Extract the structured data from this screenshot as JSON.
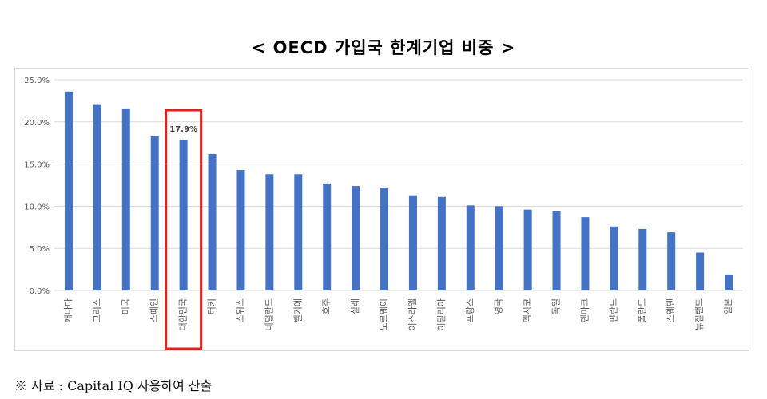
{
  "title": "< OECD 가입국 한계기업 비중 >",
  "source_note": "※ 자료 : Capital IQ 사용하여 산출",
  "colors": {
    "bar": "#4472c4",
    "highlight_box": "#e0201a",
    "grid": "#d9d9d9",
    "axis_text": "#595959"
  },
  "chart_data": {
    "type": "bar",
    "title": "< OECD 가입국 한계기업 비중 >",
    "xlabel": "",
    "ylabel": "",
    "ylim": [
      0,
      25
    ],
    "y_ticks": [
      0,
      5,
      10,
      15,
      20,
      25
    ],
    "y_tick_labels": [
      "0.0%",
      "5.0%",
      "10.0%",
      "15.0%",
      "20.0%",
      "25.0%"
    ],
    "grid": true,
    "legend": "none",
    "categories": [
      "캐나다",
      "그리스",
      "미국",
      "스페인",
      "대한민국",
      "터키",
      "스위스",
      "네덜란드",
      "벨기에",
      "호주",
      "칠레",
      "노르웨이",
      "이스라엘",
      "이탈리아",
      "프랑스",
      "영국",
      "멕시코",
      "독일",
      "덴마크",
      "핀란드",
      "폴란드",
      "스웨덴",
      "뉴질랜드",
      "일본"
    ],
    "values": [
      23.6,
      22.1,
      21.6,
      18.3,
      17.9,
      16.2,
      14.3,
      13.8,
      13.8,
      12.7,
      12.4,
      12.2,
      11.3,
      11.1,
      10.1,
      10.0,
      9.6,
      9.4,
      8.7,
      7.6,
      7.3,
      6.9,
      4.5,
      1.9
    ],
    "highlight_index": 4,
    "data_labels": [
      {
        "index": 4,
        "text": "17.9%"
      }
    ]
  }
}
